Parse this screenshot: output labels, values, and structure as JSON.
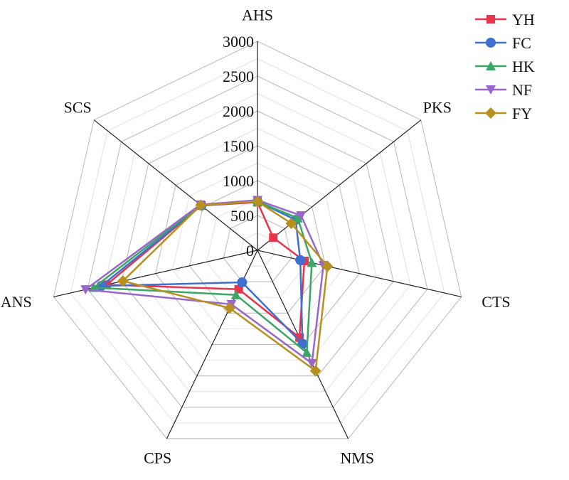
{
  "chart_data": {
    "type": "radar",
    "axes": [
      "AHS",
      "PKS",
      "CTS",
      "NMS",
      "CPS",
      "ANS",
      "SCS"
    ],
    "range": [
      0,
      3000
    ],
    "ticks": [
      "0",
      "500",
      "1000",
      "1500",
      "2000",
      "2500",
      "3000"
    ],
    "tick_values": [
      0,
      500,
      1000,
      1500,
      2000,
      2500,
      3000
    ],
    "grid": true,
    "legend_position": "top-right",
    "series": [
      {
        "name": "YH",
        "color": "#e8344a",
        "marker": "square",
        "values": [
          690,
          290,
          690,
          1390,
          620,
          2220,
          1030
        ]
      },
      {
        "name": "FC",
        "color": "#3f6fd0",
        "marker": "circle",
        "values": [
          700,
          700,
          630,
          1490,
          510,
          2300,
          1030
        ]
      },
      {
        "name": "HK",
        "color": "#3aa864",
        "marker": "triangle-up",
        "values": [
          700,
          740,
          800,
          1630,
          710,
          2410,
          1040
        ]
      },
      {
        "name": "NF",
        "color": "#9966cc",
        "marker": "triangle-down",
        "values": [
          720,
          800,
          970,
          1800,
          860,
          2530,
          1050
        ]
      },
      {
        "name": "FY",
        "color": "#b8901e",
        "marker": "diamond",
        "values": [
          700,
          620,
          1030,
          1920,
          920,
          1980,
          1040
        ]
      }
    ]
  }
}
